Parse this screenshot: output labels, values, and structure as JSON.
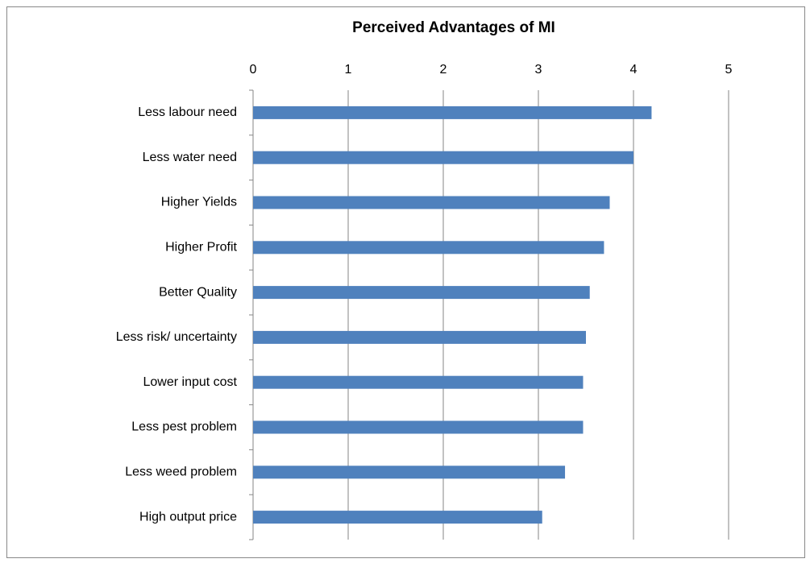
{
  "chart_data": {
    "type": "bar",
    "orientation": "horizontal",
    "title": "Perceived Advantages of MI",
    "categories": [
      "Less labour need",
      "Less water need",
      "Higher Yields",
      "Higher Profit",
      "Better Quality",
      "Less risk/ uncertainty",
      "Lower input cost",
      "Less pest problem",
      "Less weed problem",
      "High output price"
    ],
    "values": [
      4.19,
      4.0,
      3.75,
      3.69,
      3.54,
      3.5,
      3.47,
      3.47,
      3.28,
      3.04
    ],
    "color": "#4f81bd",
    "xlim": [
      0,
      5
    ],
    "xticks": [
      0,
      1,
      2,
      3,
      4,
      5
    ],
    "grid": true
  }
}
